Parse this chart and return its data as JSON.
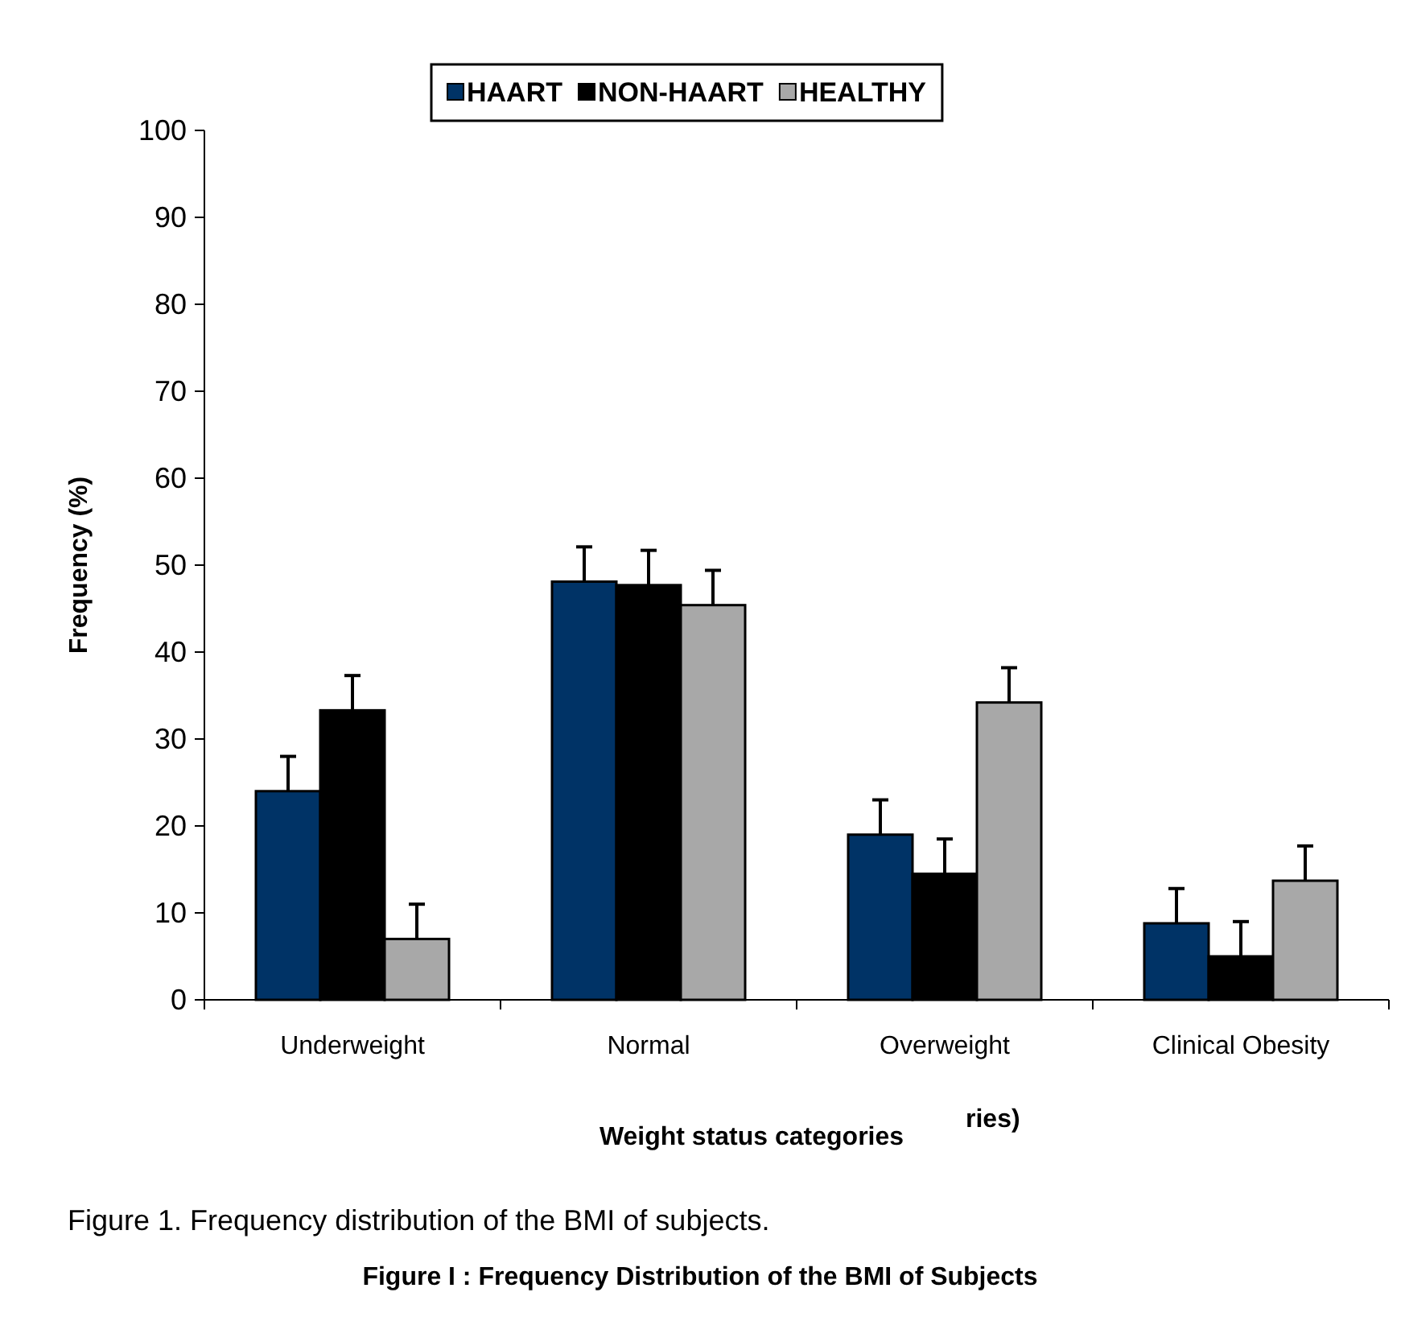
{
  "chart_data": {
    "type": "bar",
    "xlabel": "Weight status categories",
    "ylabel": "Frequency (%)",
    "categories": [
      "Underweight",
      "Normal",
      "Overweight",
      "Clinical Obesity"
    ],
    "series": [
      {
        "name": "HAART",
        "color": "#003366",
        "values": [
          24,
          48.1,
          19,
          8.8
        ],
        "errors": [
          4,
          4,
          4,
          4
        ]
      },
      {
        "name": "NON-HAART",
        "color": "#000000",
        "values": [
          33.3,
          47.7,
          14.5,
          5
        ],
        "errors": [
          4,
          4,
          4,
          4
        ]
      },
      {
        "name": "HEALTHY",
        "color": "#a8a8a8",
        "values": [
          7,
          45.4,
          34.2,
          13.7
        ],
        "errors": [
          4,
          4,
          4,
          4
        ]
      }
    ],
    "ylim": [
      0,
      100
    ],
    "yticks": [
      0,
      10,
      20,
      30,
      40,
      50,
      60,
      70,
      80,
      90,
      100
    ],
    "grid": false,
    "legend": "top",
    "annotations": [
      "ries)",
      "Figure 1. Frequency distribution of the BMI of subjects.",
      "Figure I : Frequency Distribution of the BMI of Subjects"
    ]
  }
}
